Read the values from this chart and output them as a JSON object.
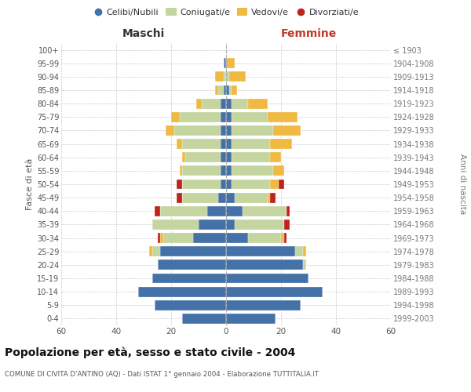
{
  "age_groups": [
    "0-4",
    "5-9",
    "10-14",
    "15-19",
    "20-24",
    "25-29",
    "30-34",
    "35-39",
    "40-44",
    "45-49",
    "50-54",
    "55-59",
    "60-64",
    "65-69",
    "70-74",
    "75-79",
    "80-84",
    "85-89",
    "90-94",
    "95-99",
    "100+"
  ],
  "birth_years": [
    "1999-2003",
    "1994-1998",
    "1989-1993",
    "1984-1988",
    "1979-1983",
    "1974-1978",
    "1969-1973",
    "1964-1968",
    "1959-1963",
    "1954-1958",
    "1949-1953",
    "1944-1948",
    "1939-1943",
    "1934-1938",
    "1929-1933",
    "1924-1928",
    "1919-1923",
    "1914-1918",
    "1909-1913",
    "1904-1908",
    "≤ 1903"
  ],
  "maschi": {
    "celibi": [
      16,
      26,
      32,
      27,
      25,
      24,
      12,
      10,
      7,
      3,
      2,
      2,
      2,
      2,
      2,
      2,
      2,
      1,
      0,
      1,
      0
    ],
    "coniugati": [
      0,
      0,
      0,
      0,
      0,
      3,
      11,
      17,
      17,
      13,
      14,
      14,
      13,
      14,
      17,
      15,
      7,
      2,
      1,
      0,
      0
    ],
    "vedovi": [
      0,
      0,
      0,
      0,
      0,
      1,
      1,
      0,
      0,
      0,
      0,
      1,
      1,
      2,
      3,
      3,
      2,
      1,
      3,
      0,
      0
    ],
    "divorziati": [
      0,
      0,
      0,
      0,
      0,
      0,
      1,
      0,
      2,
      2,
      2,
      0,
      0,
      0,
      0,
      0,
      0,
      0,
      0,
      0,
      0
    ]
  },
  "femmine": {
    "nubili": [
      18,
      27,
      35,
      30,
      28,
      25,
      8,
      3,
      6,
      3,
      2,
      2,
      2,
      2,
      2,
      2,
      2,
      1,
      0,
      0,
      0
    ],
    "coniugate": [
      0,
      0,
      0,
      0,
      1,
      3,
      12,
      18,
      16,
      12,
      14,
      15,
      14,
      14,
      15,
      13,
      6,
      1,
      1,
      0,
      0
    ],
    "vedove": [
      0,
      0,
      0,
      0,
      0,
      1,
      1,
      0,
      0,
      1,
      3,
      4,
      4,
      8,
      10,
      11,
      7,
      2,
      6,
      3,
      0
    ],
    "divorziate": [
      0,
      0,
      0,
      0,
      0,
      0,
      1,
      2,
      1,
      2,
      2,
      0,
      0,
      0,
      0,
      0,
      0,
      0,
      0,
      0,
      0
    ]
  },
  "colors": {
    "celibi_nubili": "#4472a8",
    "coniugati": "#c5d5a0",
    "vedovi": "#f0b942",
    "divorziati": "#c0231e"
  },
  "xlim": 60,
  "title": "Popolazione per età, sesso e stato civile - 2004",
  "subtitle": "COMUNE DI CIVITA D'ANTINO (AQ) - Dati ISTAT 1° gennaio 2004 - Elaborazione TUTTITALIA.IT",
  "ylabel_left": "Fasce di età",
  "ylabel_right": "Anni di nascita",
  "xlabel_left": "Maschi",
  "xlabel_right": "Femmine",
  "legend_labels": [
    "Celibi/Nubili",
    "Coniugati/e",
    "Vedovi/e",
    "Divorziati/e"
  ],
  "background_color": "#ffffff",
  "grid_color": "#cccccc"
}
